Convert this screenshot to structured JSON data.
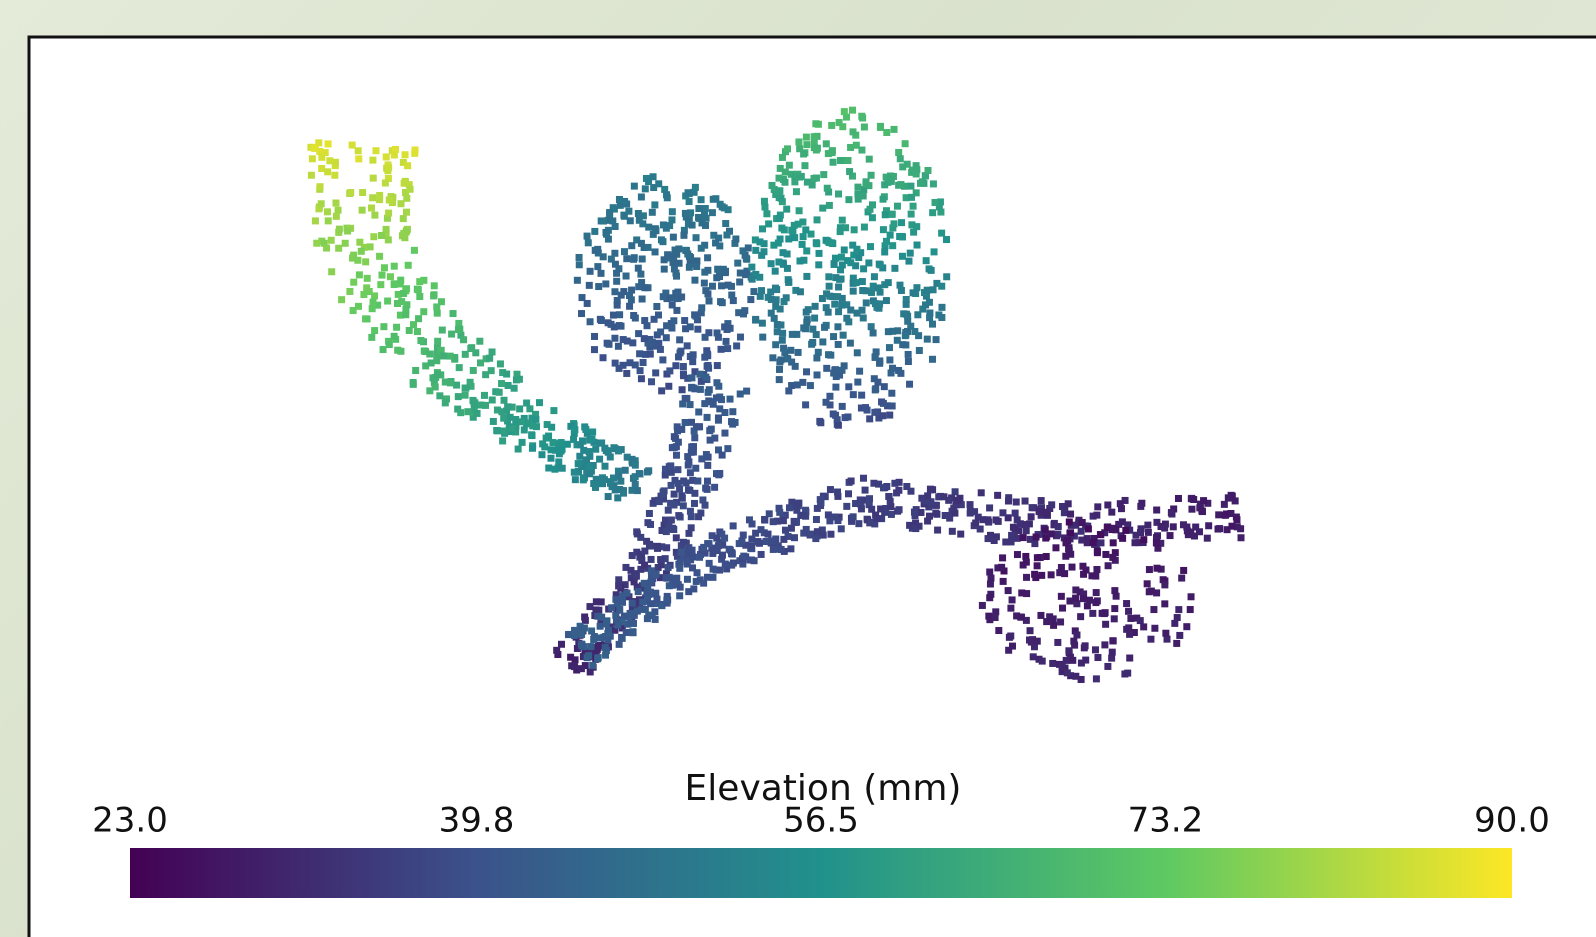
{
  "chart_data": {
    "type": "colorbar",
    "title": "Elevation (mm)",
    "colormap": "viridis",
    "xlim": [
      23,
      90
    ],
    "xticks": [
      {
        "value": 23,
        "label": "23.0"
      },
      39.8,
      56.5,
      73.2,
      {
        "value": 90,
        "label": "90.0"
      }
    ]
  }
}
